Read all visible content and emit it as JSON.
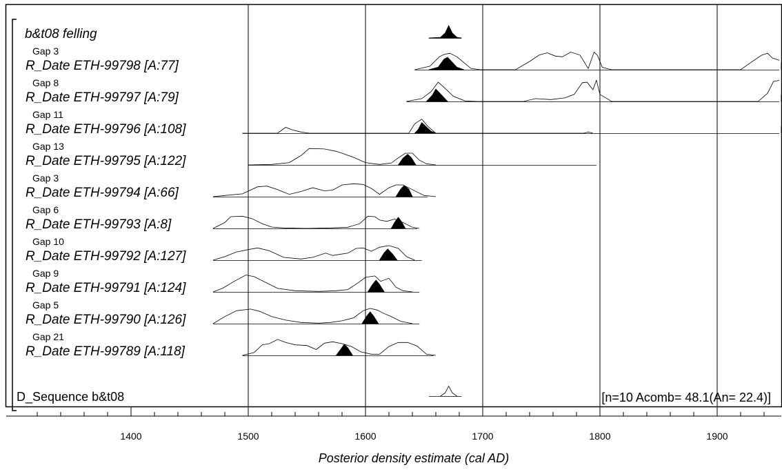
{
  "chart_data": {
    "type": "ridgeline",
    "xlabel": "Posterior density estimate (cal AD)",
    "xlim": [
      1301,
      1953
    ],
    "xticks": [
      1400,
      1500,
      1600,
      1700,
      1800,
      1900
    ],
    "minor_tick_step": 20,
    "grid": "vertical gridlines at major ticks",
    "sequence_label": "D_Sequence b&t08",
    "sequence_annotation": "[n=10 Acomb= 48.1(An= 22.4)]",
    "series": [
      {
        "label": "b&t08 felling",
        "gap": "",
        "prior": [],
        "posterior": [
          [
            1654,
            0
          ],
          [
            1664,
            0.05
          ],
          [
            1668,
            0.4
          ],
          [
            1671,
            1
          ],
          [
            1674,
            0.4
          ],
          [
            1678,
            0.05
          ],
          [
            1682,
            0
          ]
        ],
        "posterior_range": [
          1654,
          1682
        ]
      },
      {
        "label": "R_Date ETH-99798 [A:77]",
        "gap": "Gap 3",
        "prior": [
          [
            1642,
            0
          ],
          [
            1655,
            0.15
          ],
          [
            1663,
            0.55
          ],
          [
            1667,
            0.65
          ],
          [
            1672,
            0.7
          ],
          [
            1678,
            0.55
          ],
          [
            1684,
            0.3
          ],
          [
            1690,
            0.05
          ],
          [
            1698,
            0
          ],
          [
            1728,
            0
          ],
          [
            1740,
            0.35
          ],
          [
            1748,
            0.62
          ],
          [
            1755,
            0.72
          ],
          [
            1762,
            0.58
          ],
          [
            1768,
            0.55
          ],
          [
            1775,
            0.75
          ],
          [
            1783,
            0.62
          ],
          [
            1790,
            0.05
          ],
          [
            1795,
            0.75
          ],
          [
            1798,
            0.6
          ],
          [
            1802,
            0.1
          ],
          [
            1810,
            0
          ],
          [
            1920,
            0
          ],
          [
            1930,
            0.35
          ],
          [
            1938,
            0.62
          ],
          [
            1943,
            0.7
          ],
          [
            1947,
            0.5
          ],
          [
            1953,
            0.4
          ]
        ],
        "posterior": [
          [
            1654,
            0
          ],
          [
            1662,
            0.2
          ],
          [
            1667,
            0.85
          ],
          [
            1670,
            1
          ],
          [
            1673,
            0.7
          ],
          [
            1678,
            0.2
          ],
          [
            1684,
            0
          ]
        ],
        "posterior_range": [
          1642,
          1953
        ]
      },
      {
        "label": "R_Date ETH-99797 [A:79]",
        "gap": "Gap 8",
        "prior": [
          [
            1635,
            0
          ],
          [
            1648,
            0.12
          ],
          [
            1656,
            0.42
          ],
          [
            1662,
            0.82
          ],
          [
            1667,
            0.6
          ],
          [
            1675,
            0.22
          ],
          [
            1685,
            0.02
          ],
          [
            1695,
            0
          ],
          [
            1735,
            0
          ],
          [
            1745,
            0.12
          ],
          [
            1758,
            0.08
          ],
          [
            1770,
            0.15
          ],
          [
            1778,
            0.3
          ],
          [
            1785,
            0.8
          ],
          [
            1789,
            0.82
          ],
          [
            1794,
            0.5
          ],
          [
            1797,
            0.9
          ],
          [
            1800,
            0.3
          ],
          [
            1810,
            0
          ],
          [
            1935,
            0
          ],
          [
            1943,
            0.35
          ],
          [
            1948,
            0.85
          ],
          [
            1953,
            0.9
          ]
        ],
        "posterior": [
          [
            1652,
            0
          ],
          [
            1657,
            0.5
          ],
          [
            1660,
            1
          ],
          [
            1664,
            0.6
          ],
          [
            1670,
            0
          ]
        ],
        "posterior_range": [
          1635,
          1953
        ]
      },
      {
        "label": "R_Date ETH-99796 [A:108]",
        "gap": "Gap 11",
        "prior": [
          [
            1495,
            0
          ],
          [
            1525,
            0
          ],
          [
            1532,
            0.25
          ],
          [
            1537,
            0.15
          ],
          [
            1545,
            0.05
          ],
          [
            1552,
            0
          ],
          [
            1637,
            0
          ],
          [
            1642,
            0.4
          ],
          [
            1648,
            0.6
          ],
          [
            1653,
            0.3
          ],
          [
            1660,
            0
          ],
          [
            1786,
            0
          ],
          [
            1790,
            0.05
          ],
          [
            1794,
            0
          ]
        ],
        "posterior": [
          [
            1642,
            0
          ],
          [
            1645,
            0.3
          ],
          [
            1648,
            0.85
          ],
          [
            1652,
            0.5
          ],
          [
            1656,
            0.15
          ],
          [
            1660,
            0
          ]
        ],
        "posterior_range": [
          1495,
          1953
        ]
      },
      {
        "label": "R_Date ETH-99795 [A:122]",
        "gap": "Gap 13",
        "prior": [
          [
            1500,
            0
          ],
          [
            1520,
            0.02
          ],
          [
            1535,
            0.1
          ],
          [
            1545,
            0.4
          ],
          [
            1552,
            0.7
          ],
          [
            1565,
            0.68
          ],
          [
            1575,
            0.58
          ],
          [
            1580,
            0.5
          ],
          [
            1590,
            0.32
          ],
          [
            1600,
            0.1
          ],
          [
            1612,
            0.02
          ],
          [
            1622,
            0.08
          ],
          [
            1628,
            0.3
          ],
          [
            1634,
            0.5
          ],
          [
            1640,
            0.5
          ],
          [
            1646,
            0.2
          ],
          [
            1652,
            0.05
          ],
          [
            1660,
            0
          ]
        ],
        "posterior": [
          [
            1628,
            0
          ],
          [
            1632,
            0.55
          ],
          [
            1636,
            0.85
          ],
          [
            1639,
            0.6
          ],
          [
            1643,
            0
          ]
        ],
        "posterior_range": [
          1500,
          1797
        ]
      },
      {
        "label": "R_Date ETH-99794 [A:66]",
        "gap": "Gap 3",
        "prior": [
          [
            1470,
            0
          ],
          [
            1480,
            0.05
          ],
          [
            1495,
            0.12
          ],
          [
            1508,
            0.42
          ],
          [
            1516,
            0.45
          ],
          [
            1525,
            0.3
          ],
          [
            1535,
            0.1
          ],
          [
            1545,
            0.22
          ],
          [
            1555,
            0.38
          ],
          [
            1565,
            0.25
          ],
          [
            1572,
            0.28
          ],
          [
            1580,
            0.5
          ],
          [
            1590,
            0.55
          ],
          [
            1598,
            0.52
          ],
          [
            1605,
            0.35
          ],
          [
            1612,
            0.1
          ],
          [
            1620,
            0.38
          ],
          [
            1626,
            0.5
          ],
          [
            1632,
            0.5
          ],
          [
            1640,
            0.3
          ],
          [
            1650,
            0.05
          ],
          [
            1660,
            0
          ]
        ],
        "posterior": [
          [
            1626,
            0
          ],
          [
            1630,
            0.6
          ],
          [
            1633,
            0.9
          ],
          [
            1637,
            0.6
          ],
          [
            1640,
            0
          ]
        ],
        "posterior_range": [
          1470,
          1653
        ]
      },
      {
        "label": "R_Date ETH-99793 [A:8]",
        "gap": "Gap 6",
        "prior": [
          [
            1470,
            0
          ],
          [
            1480,
            0.25
          ],
          [
            1485,
            0.5
          ],
          [
            1495,
            0.52
          ],
          [
            1503,
            0.42
          ],
          [
            1512,
            0.2
          ],
          [
            1520,
            0.06
          ],
          [
            1530,
            0.02
          ],
          [
            1550,
            0
          ],
          [
            1570,
            0.02
          ],
          [
            1585,
            0.05
          ],
          [
            1595,
            0.2
          ],
          [
            1602,
            0.52
          ],
          [
            1608,
            0.5
          ],
          [
            1612,
            0.36
          ],
          [
            1618,
            0.3
          ],
          [
            1625,
            0.4
          ],
          [
            1632,
            0.25
          ],
          [
            1640,
            0.05
          ],
          [
            1646,
            0
          ]
        ],
        "posterior": [
          [
            1622,
            0
          ],
          [
            1625,
            0.5
          ],
          [
            1628,
            0.9
          ],
          [
            1631,
            0.5
          ],
          [
            1634,
            0
          ]
        ],
        "posterior_range": [
          1470,
          1644
        ]
      },
      {
        "label": "R_Date ETH-99792 [A:127]",
        "gap": "Gap 10",
        "prior": [
          [
            1470,
            0
          ],
          [
            1480,
            0.15
          ],
          [
            1490,
            0.35
          ],
          [
            1500,
            0.45
          ],
          [
            1508,
            0.52
          ],
          [
            1518,
            0.4
          ],
          [
            1530,
            0.12
          ],
          [
            1545,
            0.05
          ],
          [
            1555,
            0.12
          ],
          [
            1566,
            0.3
          ],
          [
            1572,
            0.2
          ],
          [
            1585,
            0.3
          ],
          [
            1592,
            0.5
          ],
          [
            1598,
            0.52
          ],
          [
            1605,
            0.38
          ],
          [
            1612,
            0.55
          ],
          [
            1620,
            0.62
          ],
          [
            1628,
            0.5
          ],
          [
            1635,
            0.15
          ],
          [
            1642,
            0
          ]
        ],
        "posterior": [
          [
            1612,
            0
          ],
          [
            1616,
            0.6
          ],
          [
            1619,
            0.9
          ],
          [
            1623,
            0.5
          ],
          [
            1627,
            0
          ]
        ],
        "posterior_range": [
          1470,
          1648
        ]
      },
      {
        "label": "R_Date ETH-99791 [A:124]",
        "gap": "Gap 9",
        "prior": [
          [
            1470,
            0
          ],
          [
            1478,
            0.15
          ],
          [
            1488,
            0.45
          ],
          [
            1498,
            0.72
          ],
          [
            1505,
            0.65
          ],
          [
            1515,
            0.4
          ],
          [
            1525,
            0.15
          ],
          [
            1540,
            0.05
          ],
          [
            1560,
            0.02
          ],
          [
            1575,
            0.05
          ],
          [
            1585,
            0.1
          ],
          [
            1594,
            0.4
          ],
          [
            1600,
            0.62
          ],
          [
            1608,
            0.68
          ],
          [
            1613,
            0.45
          ],
          [
            1620,
            0.58
          ],
          [
            1626,
            0.2
          ],
          [
            1632,
            0.05
          ],
          [
            1640,
            0
          ]
        ],
        "posterior": [
          [
            1602,
            0
          ],
          [
            1606,
            0.6
          ],
          [
            1609,
            0.95
          ],
          [
            1612,
            0.6
          ],
          [
            1616,
            0
          ]
        ],
        "posterior_range": [
          1470,
          1646
        ]
      },
      {
        "label": "R_Date ETH-99790 [A:126]",
        "gap": "Gap 5",
        "prior": [
          [
            1470,
            0
          ],
          [
            1480,
            0.3
          ],
          [
            1490,
            0.55
          ],
          [
            1502,
            0.62
          ],
          [
            1510,
            0.52
          ],
          [
            1520,
            0.3
          ],
          [
            1532,
            0.15
          ],
          [
            1545,
            0.05
          ],
          [
            1560,
            0.02
          ],
          [
            1570,
            0.05
          ],
          [
            1580,
            0.12
          ],
          [
            1590,
            0.25
          ],
          [
            1598,
            0.55
          ],
          [
            1604,
            0.65
          ],
          [
            1610,
            0.58
          ],
          [
            1615,
            0.45
          ],
          [
            1622,
            0.3
          ],
          [
            1630,
            0.1
          ],
          [
            1640,
            0
          ]
        ],
        "posterior": [
          [
            1597,
            0
          ],
          [
            1601,
            0.6
          ],
          [
            1604,
            0.95
          ],
          [
            1607,
            0.6
          ],
          [
            1611,
            0
          ]
        ],
        "posterior_range": [
          1470,
          1646
        ]
      },
      {
        "label": "R_Date ETH-99789 [A:118]",
        "gap": "Gap 21",
        "prior": [
          [
            1495,
            0
          ],
          [
            1505,
            0.12
          ],
          [
            1512,
            0.45
          ],
          [
            1518,
            0.5
          ],
          [
            1525,
            0.68
          ],
          [
            1532,
            0.55
          ],
          [
            1540,
            0.45
          ],
          [
            1550,
            0.42
          ],
          [
            1558,
            0.25
          ],
          [
            1565,
            0.52
          ],
          [
            1572,
            0.58
          ],
          [
            1580,
            0.5
          ],
          [
            1588,
            0.38
          ],
          [
            1596,
            0.15
          ],
          [
            1605,
            0.05
          ],
          [
            1612,
            0.05
          ],
          [
            1620,
            0.38
          ],
          [
            1628,
            0.55
          ],
          [
            1636,
            0.55
          ],
          [
            1644,
            0.4
          ],
          [
            1652,
            0.05
          ],
          [
            1660,
            0
          ]
        ],
        "posterior": [
          [
            1575,
            0
          ],
          [
            1579,
            0.5
          ],
          [
            1582,
            0.9
          ],
          [
            1585,
            0.6
          ],
          [
            1589,
            0
          ]
        ],
        "posterior_range": [
          1495,
          1658
        ]
      }
    ],
    "sequence_prior": [
      [
        1664,
        0
      ],
      [
        1668,
        0.3
      ],
      [
        1671,
        0.9
      ],
      [
        1674,
        0.3
      ],
      [
        1678,
        0
      ]
    ],
    "sequence_range": [
      1654,
      1682
    ]
  }
}
